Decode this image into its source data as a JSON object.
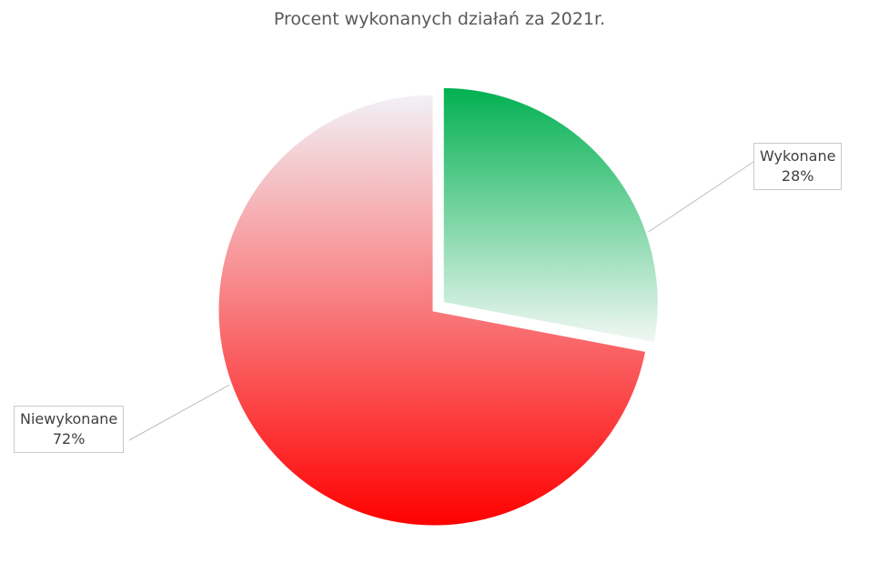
{
  "chart_data": {
    "type": "pie",
    "title": "Procent wykonanych działań za 2021r.",
    "slices": [
      {
        "label": "Wykonane",
        "value": 28,
        "value_label": "28%",
        "color_top": "#00b050",
        "color_bottom": "#f2f8f5",
        "exploded": true
      },
      {
        "label": "Niewykonane",
        "value": 72,
        "value_label": "72%",
        "color_top": "#f2f2f7",
        "color_bottom": "#ff0000",
        "exploded": false
      }
    ]
  }
}
